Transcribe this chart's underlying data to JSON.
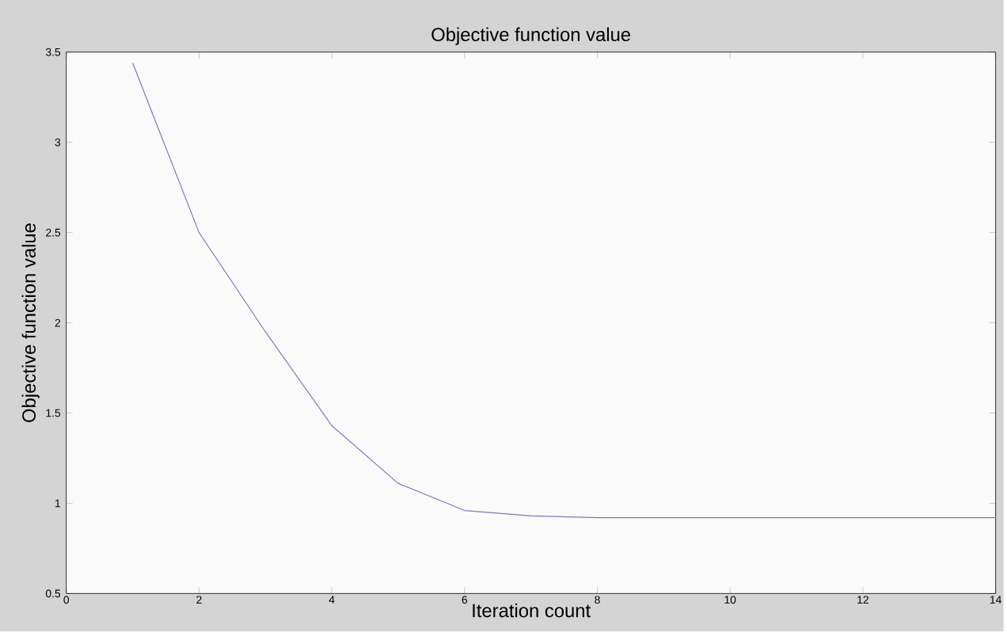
{
  "chart_data": {
    "type": "line",
    "title": "Objective function value",
    "xlabel": "Iteration count",
    "ylabel": "Objective function value",
    "x": [
      1,
      2,
      3,
      4,
      5,
      6,
      7,
      8,
      9,
      10,
      11,
      12,
      13,
      14
    ],
    "series": [
      {
        "color": "#7b7bb8",
        "values": [
          3.44,
          2.5,
          1.95,
          1.43,
          1.11,
          0.96,
          0.93,
          0.92,
          0.92,
          0.92,
          0.92,
          0.92,
          0.92,
          0.92
        ]
      }
    ],
    "xlim": [
      0,
      14
    ],
    "ylim": [
      0.5,
      3.5
    ],
    "xticks": [
      0,
      2,
      4,
      6,
      8,
      10,
      12,
      14
    ],
    "yticks": [
      0.5,
      1,
      1.5,
      2,
      2.5,
      3,
      3.5
    ],
    "grid": false,
    "marker": "none",
    "line_style": "solid"
  }
}
